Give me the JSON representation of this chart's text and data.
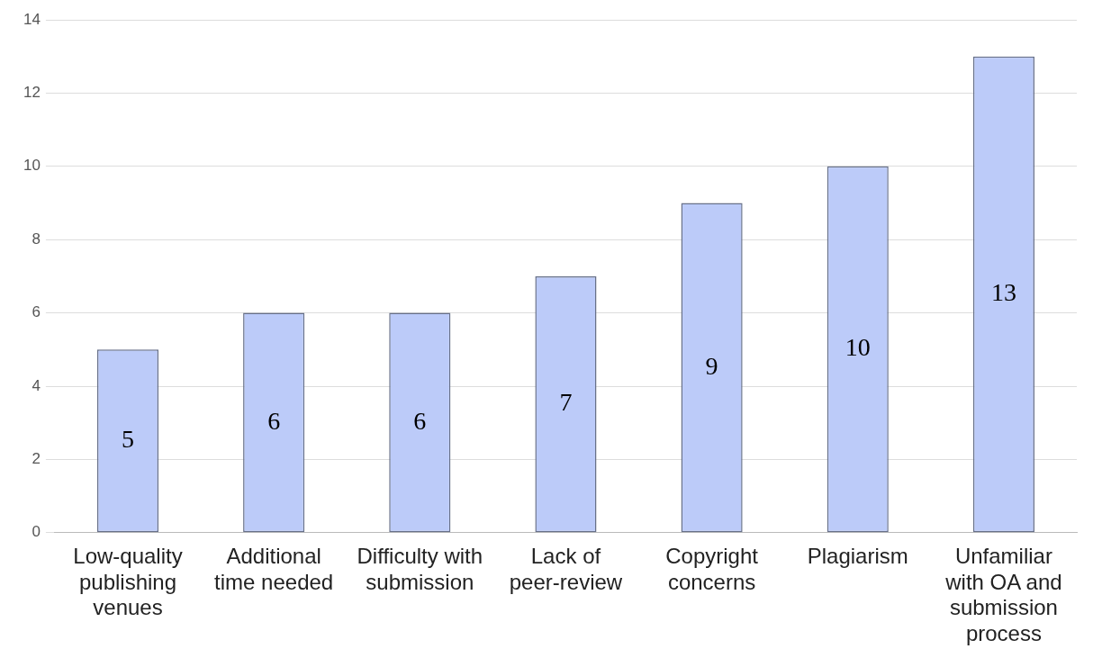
{
  "chart_data": {
    "type": "bar",
    "categories": [
      "Low-quality publishing venues",
      "Additional time needed",
      "Difficulty with submission",
      "Lack of peer-review",
      "Copyright concerns",
      "Plagiarism",
      "Unfamiliar with OA and submission process"
    ],
    "values": [
      5,
      6,
      6,
      7,
      9,
      10,
      13
    ],
    "color": "#bccbf9",
    "ylim": [
      0,
      14
    ],
    "yticks": [
      0,
      2,
      4,
      6,
      8,
      10,
      12,
      14
    ],
    "grid": "y",
    "legend": false,
    "data_labels": true
  }
}
